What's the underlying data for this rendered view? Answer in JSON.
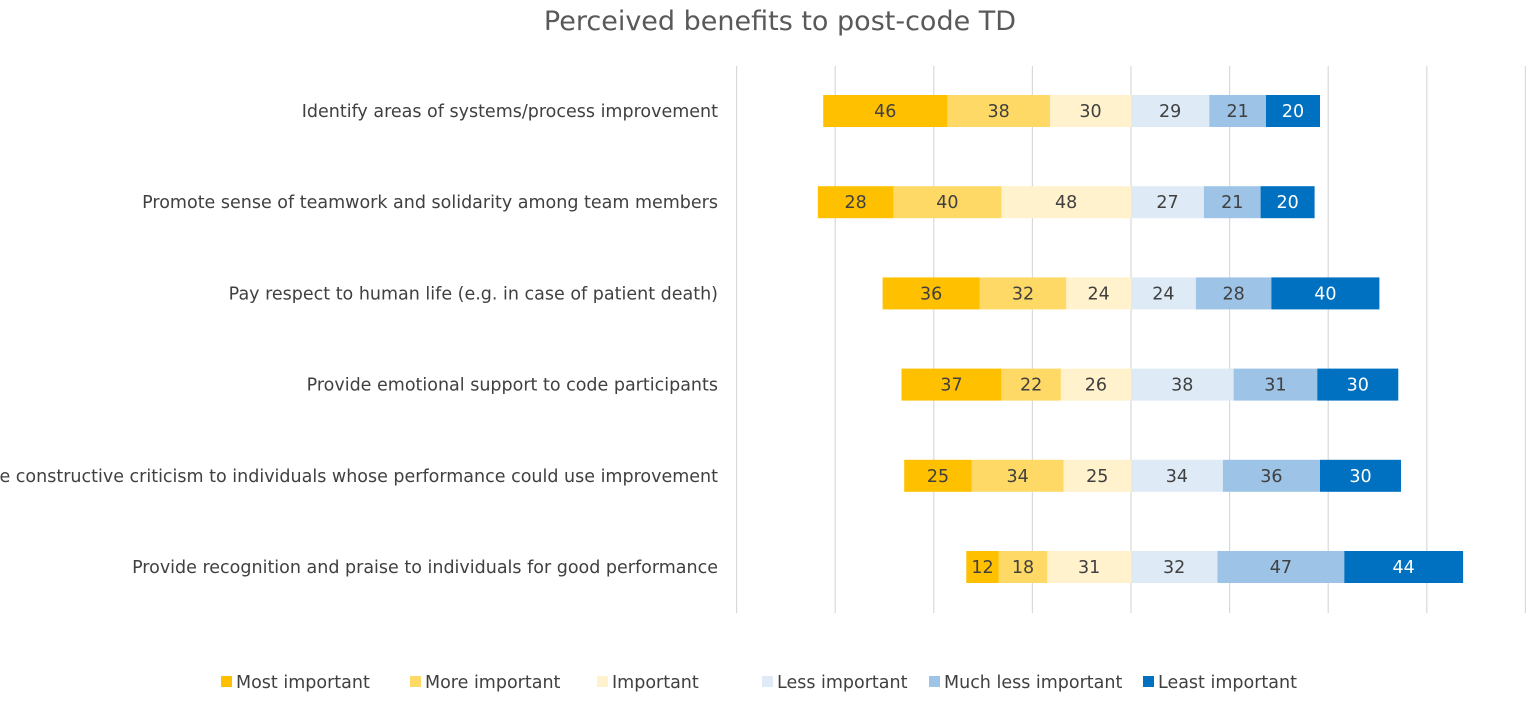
{
  "chart_data": {
    "type": "bar",
    "orientation": "horizontal",
    "stacked": "diverging",
    "title": "Perceived benefits to post-code TD",
    "xlabel": "",
    "ylabel": "",
    "grid": true,
    "legend_position": "bottom",
    "categories": [
      "Identify areas of systems/process improvement",
      "Promote sense of teamwork and solidarity among team members",
      "Pay respect to human life (e.g. in case of patient death)",
      "Provide emotional support to code participants",
      "Provide constructive criticism to individuals whose performance could use improvement",
      "Provide recognition and praise to individuals for good performance"
    ],
    "series": [
      {
        "name": "Most important",
        "color": "#FFC000",
        "side": "left",
        "values": [
          46,
          28,
          36,
          37,
          25,
          12
        ]
      },
      {
        "name": "More important",
        "color": "#FFD966",
        "side": "left",
        "values": [
          38,
          40,
          32,
          22,
          34,
          18
        ]
      },
      {
        "name": "Important",
        "color": "#FFF2CC",
        "side": "left",
        "values": [
          30,
          48,
          24,
          26,
          25,
          31
        ]
      },
      {
        "name": "Less important",
        "color": "#DEEBF7",
        "side": "right",
        "values": [
          29,
          27,
          24,
          38,
          34,
          32
        ]
      },
      {
        "name": "Much less important",
        "color": "#9DC3E6",
        "side": "right",
        "values": [
          21,
          21,
          28,
          31,
          36,
          47
        ]
      },
      {
        "name": "Least important",
        "color": "#0070C0",
        "side": "right",
        "values": [
          20,
          20,
          40,
          30,
          30,
          44
        ]
      }
    ]
  }
}
